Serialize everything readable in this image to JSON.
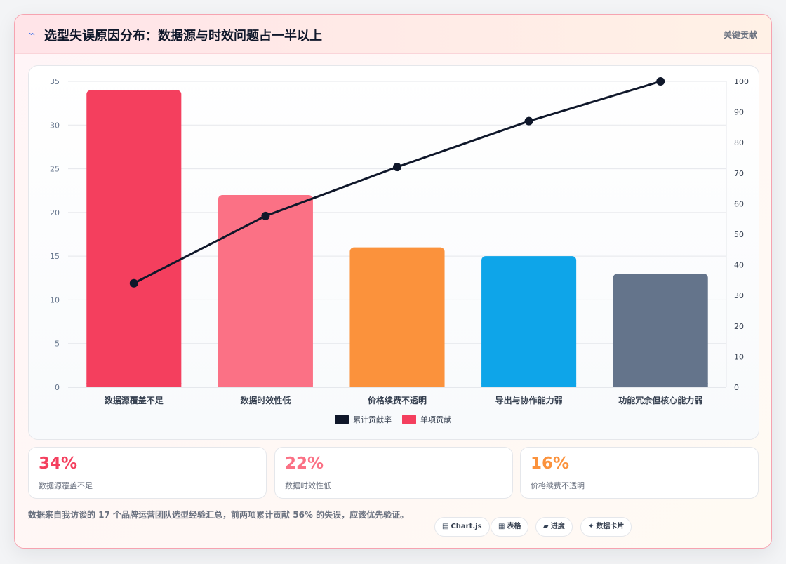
{
  "header": {
    "title": "选型失误原因分布：数据源与时效问题占一半以上",
    "title_icon": "trend-arrow-icon",
    "tag": "关键贡献"
  },
  "chart_data": {
    "type": "bar",
    "categories": [
      "数据源覆盖不足",
      "数据时效性低",
      "价格续费不透明",
      "导出与协作能力弱",
      "功能冗余但核心能力弱"
    ],
    "series": [
      {
        "name": "单项贡献",
        "type": "bar",
        "axis": "left",
        "values": [
          34,
          22,
          16,
          15,
          13
        ],
        "colors": [
          "#f43f5e",
          "#fb7185",
          "#fb923c",
          "#0ea5e9",
          "#64748b"
        ]
      },
      {
        "name": "累计贡献率",
        "type": "line",
        "axis": "right",
        "values": [
          34,
          56,
          72,
          87,
          100
        ],
        "color": "#0f172a"
      }
    ],
    "y_left": {
      "min": 0,
      "max": 35,
      "ticks": [
        0,
        5,
        10,
        15,
        20,
        25,
        30,
        35
      ]
    },
    "y_right": {
      "min": 0,
      "max": 100,
      "ticks": [
        0,
        10,
        20,
        30,
        40,
        50,
        60,
        70,
        80,
        90,
        100
      ]
    },
    "grid": true,
    "legend_position": "bottom-center",
    "legend": [
      {
        "label": "累计贡献率",
        "color": "#0f172a"
      },
      {
        "label": "单项贡献",
        "color": "#f43f5e"
      }
    ]
  },
  "stats": [
    {
      "value": "34%",
      "label": "数据源覆盖不足",
      "color": "#f43f5e"
    },
    {
      "value": "22%",
      "label": "数据时效性低",
      "color": "#fb7185"
    },
    {
      "value": "16%",
      "label": "价格续费不透明",
      "color": "#fb923c"
    }
  ],
  "footer": {
    "note": "数据来自我访谈的 17 个品牌运营团队选型经验汇总，前两项累计贡献 56% 的失误，应该优先验证。",
    "pills": [
      {
        "icon": "chart-icon",
        "glyph": "▤",
        "label": "Chart.js"
      },
      {
        "icon": "table-icon",
        "glyph": "▦",
        "label": "表格"
      },
      {
        "icon": "progress-icon",
        "glyph": "▰",
        "label": "进度"
      },
      {
        "icon": "sparkle-icon",
        "glyph": "✦",
        "label": "数据卡片"
      }
    ]
  }
}
